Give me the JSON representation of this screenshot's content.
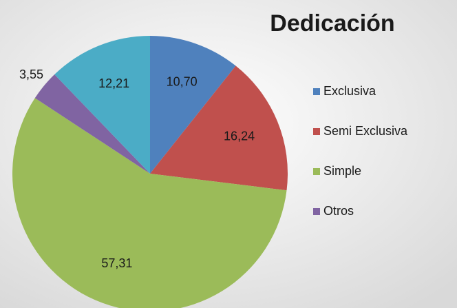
{
  "chart_data": {
    "type": "pie",
    "title": "Dedicación",
    "categories": [
      "Exclusiva",
      "Semi Exclusiva",
      "Simple",
      "Otros",
      null
    ],
    "values": [
      10.7,
      16.24,
      57.31,
      3.55,
      12.21
    ],
    "value_labels": [
      "10,70",
      "16,24",
      "57,31",
      "3,55",
      "12,21"
    ],
    "colors": [
      "#4f81bd",
      "#c0504d",
      "#9bbb59",
      "#8064a2",
      "#4bacc6"
    ],
    "legend": "right"
  }
}
